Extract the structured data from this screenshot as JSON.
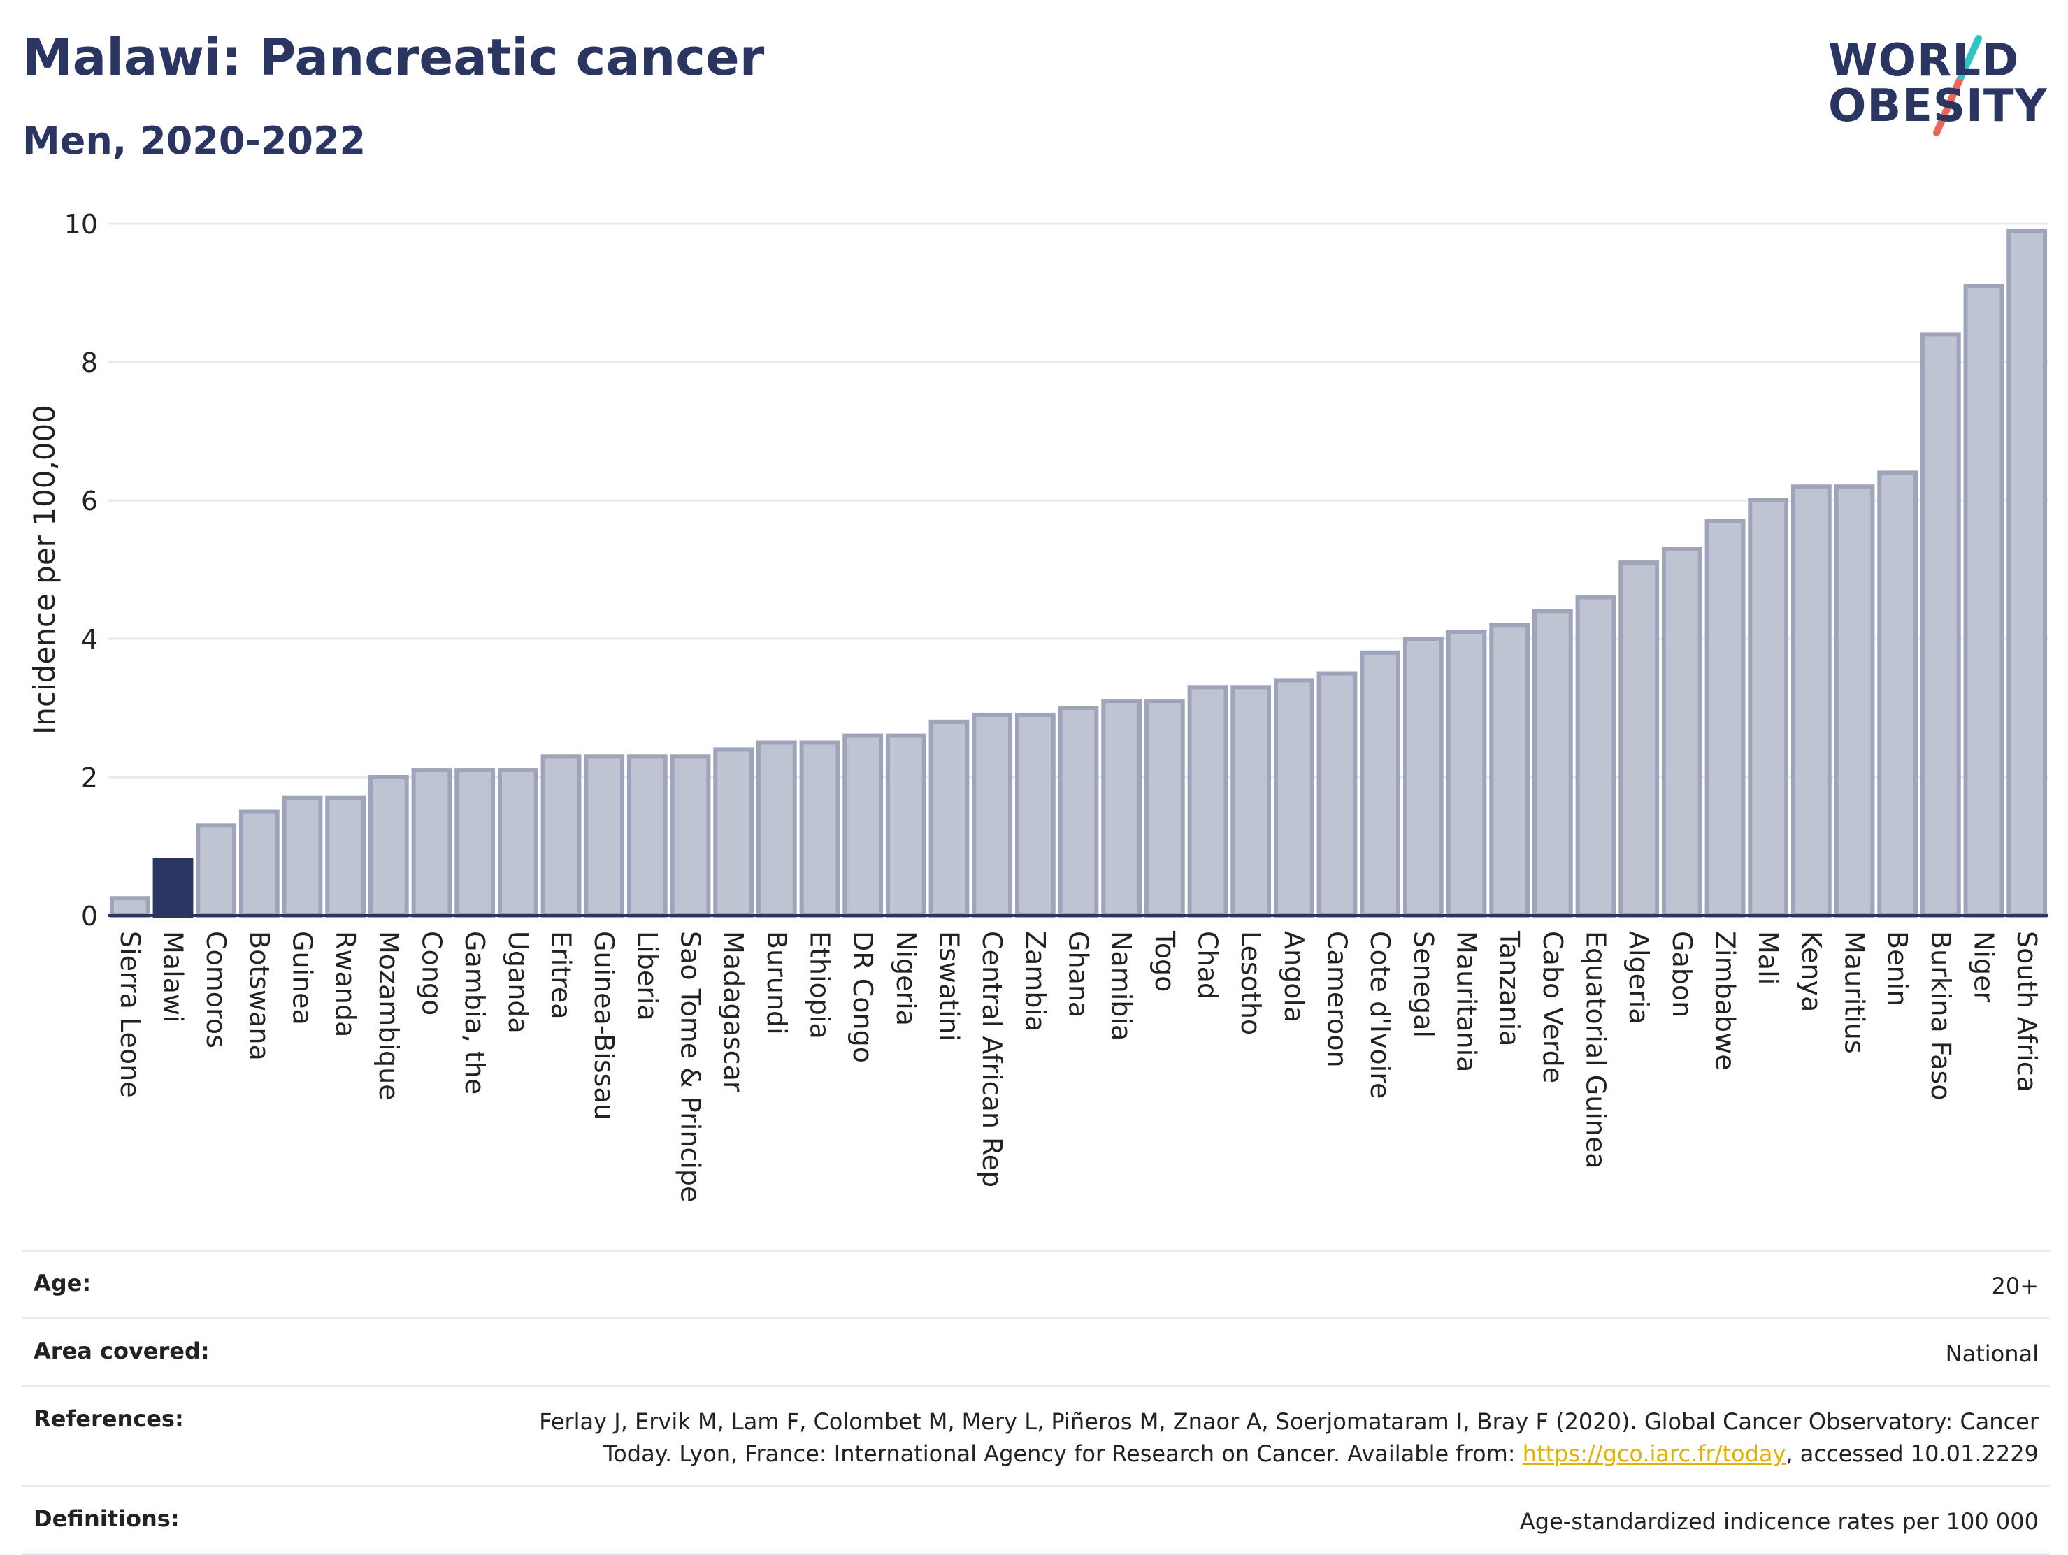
{
  "header": {
    "title": "Malawi: Pancreatic cancer",
    "subtitle": "Men, 2020-2022"
  },
  "logo": {
    "line1": "WORLD",
    "line2": "OBESITY",
    "slash_colors": [
      "#2ec4c4",
      "#e8675a"
    ]
  },
  "colors": {
    "bar_default": "#bfc4d3",
    "bar_border": "#9ea4ba",
    "bar_highlight": "#2b3561",
    "grid": "#e6e9ef",
    "axis": "#2b3561"
  },
  "chart_data": {
    "type": "bar",
    "title": "Malawi: Pancreatic cancer",
    "subtitle": "Men, 2020-2022",
    "xlabel": "",
    "ylabel": "Incidence per 100,000",
    "ylim": [
      0,
      10
    ],
    "yticks": [
      0,
      2,
      4,
      6,
      8,
      10
    ],
    "grid": true,
    "highlight": "Malawi",
    "categories": [
      "Sierra Leone",
      "Malawi",
      "Comoros",
      "Botswana",
      "Guinea",
      "Rwanda",
      "Mozambique",
      "Congo",
      "Gambia, the",
      "Uganda",
      "Eritrea",
      "Guinea-Bissau",
      "Liberia",
      "Sao Tome & Principe",
      "Madagascar",
      "Burundi",
      "Ethiopia",
      "DR Congo",
      "Nigeria",
      "Eswatini",
      "Central African Rep",
      "Zambia",
      "Ghana",
      "Namibia",
      "Togo",
      "Chad",
      "Lesotho",
      "Angola",
      "Cameroon",
      "Cote d'Ivoire",
      "Senegal",
      "Mauritania",
      "Tanzania",
      "Cabo Verde",
      "Equatorial Guinea",
      "Algeria",
      "Gabon",
      "Zimbabwe",
      "Mali",
      "Kenya",
      "Mauritius",
      "Benin",
      "Burkina Faso",
      "Niger",
      "South Africa"
    ],
    "values": [
      0.25,
      0.8,
      1.3,
      1.5,
      1.7,
      1.7,
      2.0,
      2.1,
      2.1,
      2.1,
      2.3,
      2.3,
      2.3,
      2.3,
      2.4,
      2.5,
      2.5,
      2.6,
      2.6,
      2.8,
      2.9,
      2.9,
      3.0,
      3.1,
      3.1,
      3.3,
      3.3,
      3.4,
      3.5,
      3.8,
      4.0,
      4.1,
      4.2,
      4.4,
      4.6,
      5.1,
      5.3,
      5.7,
      6.0,
      6.2,
      6.2,
      6.4,
      8.4,
      9.1,
      9.9
    ]
  },
  "info": {
    "rows": [
      {
        "key": "Age:",
        "value": "20+"
      },
      {
        "key": "Area covered:",
        "value": "National"
      },
      {
        "key": "References:",
        "value_prefix": "Ferlay J, Ervik M, Lam F, Colombet M, Mery L, Piñeros M, Znaor A, Soerjomataram I, Bray F (2020). Global Cancer Observatory: Cancer Today. Lyon, France: International Agency for Research on Cancer. Available from: ",
        "link": "https://gco.iarc.fr/today",
        "value_suffix": ", accessed 10.01.2229"
      },
      {
        "key": "Definitions:",
        "value": "Age-standardized indicence rates per 100 000"
      }
    ]
  }
}
